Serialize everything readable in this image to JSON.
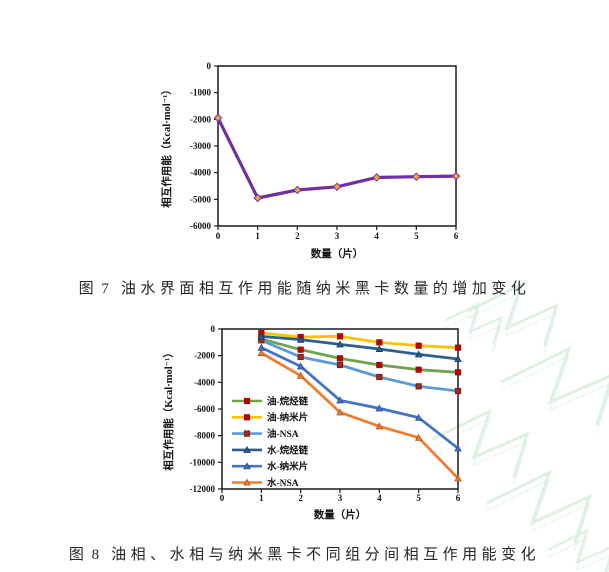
{
  "page": {
    "background": "#ffffff"
  },
  "figure7": {
    "caption_label": "图 7",
    "caption_text": "油水界面相互作用能随纳米黑卡数量的增加变化"
  },
  "figure8": {
    "caption_label": "图 8",
    "caption_text": "油相、水相与纳米黑卡不同组分间相互作用能变化"
  },
  "watermark": {
    "color": "#d9eedd"
  },
  "chart_data": [
    {
      "id": "fig7",
      "type": "line",
      "title": "",
      "xlabel": "数量（片）",
      "ylabel": "相互作用能（Kcal·mol⁻¹）",
      "xlim": [
        0,
        6
      ],
      "ylim": [
        -6000,
        0
      ],
      "xticks": [
        0,
        1,
        2,
        3,
        4,
        5,
        6
      ],
      "yticks": [
        0,
        -1000,
        -2000,
        -3000,
        -4000,
        -5000,
        -6000
      ],
      "grid": false,
      "legend_position": "none",
      "series": [
        {
          "name": "油水界面相互作用能",
          "x": [
            0,
            1,
            2,
            3,
            4,
            5,
            6
          ],
          "values": [
            -1950,
            -4950,
            -4650,
            -4530,
            -4180,
            -4150,
            -4130
          ],
          "line_color": "#7030A0",
          "line_width": 3.2,
          "marker": "diamond",
          "marker_fill": "#F2A33C",
          "marker_stroke": "#7030A0"
        }
      ]
    },
    {
      "id": "fig8",
      "type": "line",
      "title": "",
      "xlabel": "数量（片）",
      "ylabel": "相互作用能（Kcal·mol⁻¹）",
      "xlim": [
        0,
        6
      ],
      "ylim": [
        -12000,
        0
      ],
      "xticks": [
        0,
        1,
        2,
        3,
        4,
        5,
        6
      ],
      "yticks": [
        0,
        -2000,
        -4000,
        -6000,
        -8000,
        -10000,
        -12000
      ],
      "grid": false,
      "legend_position": "inside-left-bottom",
      "series": [
        {
          "name": "油-烷烃链",
          "x": [
            1,
            2,
            3,
            4,
            5,
            6
          ],
          "values": [
            -750,
            -1550,
            -2200,
            -2700,
            -3050,
            -3250
          ],
          "line_color": "#70A14B",
          "line_width": 2.8,
          "marker": "square",
          "marker_fill": "#C00000",
          "marker_stroke": "#8F1010"
        },
        {
          "name": "油-纳米片",
          "x": [
            1,
            2,
            3,
            4,
            5,
            6
          ],
          "values": [
            -300,
            -600,
            -550,
            -1000,
            -1250,
            -1400
          ],
          "line_color": "#FFC000",
          "line_width": 2.8,
          "marker": "square",
          "marker_fill": "#C00000",
          "marker_stroke": "#8F1010"
        },
        {
          "name": "油-NSA",
          "x": [
            1,
            2,
            3,
            4,
            5,
            6
          ],
          "values": [
            -850,
            -2100,
            -2700,
            -3600,
            -4300,
            -4650
          ],
          "line_color": "#5B9BD5",
          "line_width": 2.8,
          "marker": "square",
          "marker_fill": "#9E2B25",
          "marker_stroke": "#6E1B17"
        },
        {
          "name": "水-烷烃链",
          "x": [
            1,
            2,
            3,
            4,
            5,
            6
          ],
          "values": [
            -550,
            -800,
            -1150,
            -1500,
            -1900,
            -2250
          ],
          "line_color": "#2A5F8F",
          "line_width": 2.8,
          "marker": "triangle",
          "marker_fill": "#2A5F8F",
          "marker_stroke": "#17395A"
        },
        {
          "name": "水-纳米片",
          "x": [
            1,
            2,
            3,
            4,
            5,
            6
          ],
          "values": [
            -1400,
            -2800,
            -5350,
            -5950,
            -6650,
            -8950
          ],
          "line_color": "#4472C4",
          "line_width": 2.8,
          "marker": "triangle",
          "marker_fill": "#4472C4",
          "marker_stroke": "#2A4B8A"
        },
        {
          "name": "水-NSA",
          "x": [
            1,
            2,
            3,
            4,
            5,
            6
          ],
          "values": [
            -1800,
            -3500,
            -6250,
            -7300,
            -8150,
            -11200
          ],
          "line_color": "#ED7D31",
          "line_width": 2.8,
          "marker": "triangle",
          "marker_fill": "#ED7D31",
          "marker_stroke": "#B55417"
        }
      ]
    }
  ]
}
